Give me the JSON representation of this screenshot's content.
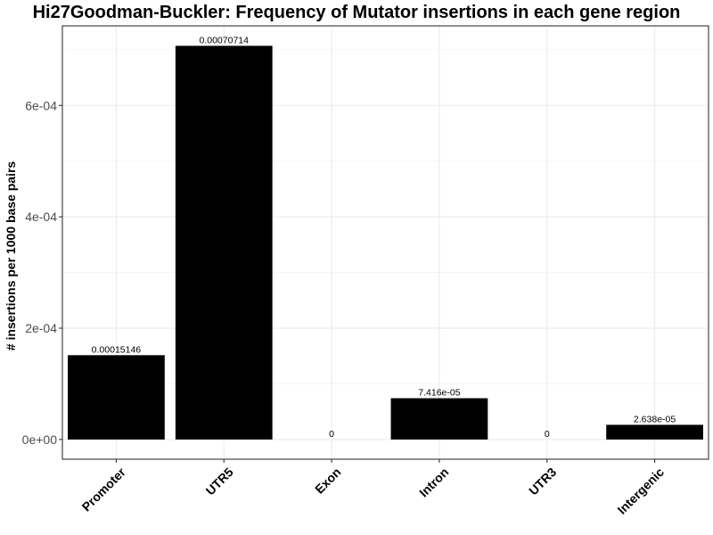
{
  "chart_data": {
    "type": "bar",
    "title": "Hi27Goodman-Buckler: Frequency of Mutator insertions in each gene region",
    "xlabel": "",
    "ylabel": "# insertions per 1000 base pairs",
    "categories": [
      "Promoter",
      "UTR5",
      "Exon",
      "Intron",
      "UTR3",
      "Intergenic"
    ],
    "values": [
      0.00015146,
      0.00070714,
      0,
      7.416e-05,
      0,
      2.638e-05
    ],
    "value_labels": [
      "0.00015146",
      "0.00070714",
      "0",
      "7.416e-05",
      "0",
      "2.638e-05"
    ],
    "ylim": [
      -3.54e-05,
      0.000743
    ],
    "yticks": [
      0,
      0.0002,
      0.0004,
      0.0006
    ],
    "ytick_labels": [
      "0e+00",
      "2e-04",
      "4e-04",
      "6e-04"
    ],
    "bar_color": "#000000",
    "grid": true,
    "legend": "none"
  }
}
